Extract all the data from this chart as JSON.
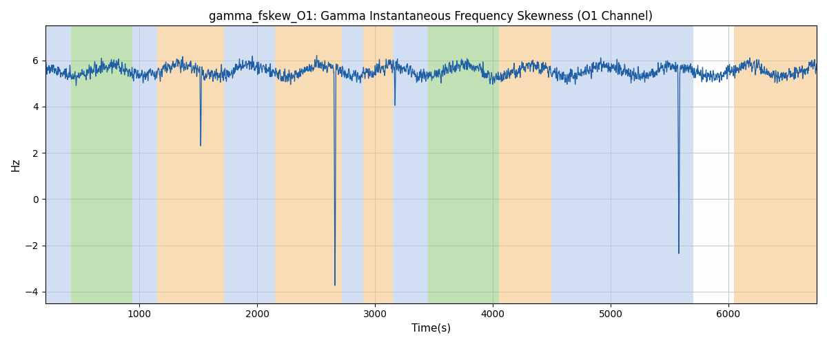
{
  "title": "gamma_fskew_O1: Gamma Instantaneous Frequency Skewness (O1 Channel)",
  "xlabel": "Time(s)",
  "ylabel": "Hz",
  "ylim": [
    -4.5,
    7.5
  ],
  "xlim": [
    200,
    6750
  ],
  "yticks": [
    -4,
    -2,
    0,
    2,
    4,
    6
  ],
  "xticks": [
    1000,
    2000,
    3000,
    4000,
    5000,
    6000
  ],
  "signal_color": "#1f5fa6",
  "signal_linewidth": 0.9,
  "bands": [
    {
      "xmin": 200,
      "xmax": 420,
      "color": "#aec6e8",
      "alpha": 0.55
    },
    {
      "xmin": 420,
      "xmax": 940,
      "color": "#90c878",
      "alpha": 0.55
    },
    {
      "xmin": 940,
      "xmax": 1150,
      "color": "#aec6e8",
      "alpha": 0.55
    },
    {
      "xmin": 1150,
      "xmax": 1720,
      "color": "#f4c07a",
      "alpha": 0.55
    },
    {
      "xmin": 1720,
      "xmax": 2150,
      "color": "#aec6e8",
      "alpha": 0.55
    },
    {
      "xmin": 2150,
      "xmax": 2720,
      "color": "#f4c07a",
      "alpha": 0.55
    },
    {
      "xmin": 2720,
      "xmax": 2900,
      "color": "#aec6e8",
      "alpha": 0.55
    },
    {
      "xmin": 2900,
      "xmax": 3150,
      "color": "#f4c07a",
      "alpha": 0.55
    },
    {
      "xmin": 3150,
      "xmax": 3450,
      "color": "#aec6e8",
      "alpha": 0.55
    },
    {
      "xmin": 3450,
      "xmax": 4050,
      "color": "#90c878",
      "alpha": 0.55
    },
    {
      "xmin": 4050,
      "xmax": 4500,
      "color": "#f4c07a",
      "alpha": 0.55
    },
    {
      "xmin": 4500,
      "xmax": 5700,
      "color": "#aec6e8",
      "alpha": 0.55
    },
    {
      "xmin": 5700,
      "xmax": 6050,
      "color": "#90c878",
      "alpha": 0.01
    },
    {
      "xmin": 6050,
      "xmax": 6750,
      "color": "#f4c07a",
      "alpha": 0.55
    }
  ],
  "seed": 42,
  "t_start": 200,
  "t_end": 6750,
  "base_mean": 5.55,
  "base_std": 0.32
}
